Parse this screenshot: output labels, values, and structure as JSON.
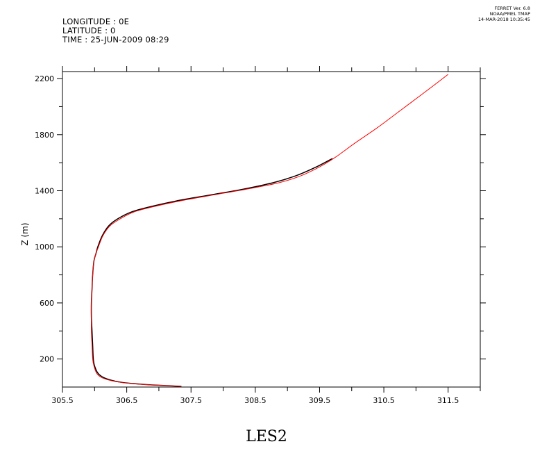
{
  "header": {
    "longitude": "LONGITUDE : 0E",
    "latitude": "LATITUDE : 0",
    "time": "TIME : 25-JUN-2009 08:29"
  },
  "ferret": {
    "line1": "FERRET Ver. 6.8",
    "line2": "NOAA/PMEL TMAP",
    "line3": "14-MAR-2018 10:35:45"
  },
  "chart_data": {
    "type": "line",
    "title": "LES2",
    "xlabel": "",
    "ylabel": "Z (m)",
    "xlim": [
      305.5,
      312.0
    ],
    "ylim": [
      0,
      2250
    ],
    "xticks_major": [
      305.5,
      306.5,
      307.5,
      308.5,
      309.5,
      310.5,
      311.5
    ],
    "xtick_labels": [
      "305.5",
      "306.5",
      "307.5",
      "308.5",
      "309.5",
      "310.5",
      "311.5"
    ],
    "yticks_major": [
      200,
      600,
      1000,
      1400,
      1800,
      2200
    ],
    "ytick_labels": [
      "200",
      "600",
      "1000",
      "1400",
      "1800",
      "2200"
    ],
    "grid": false,
    "series": [
      {
        "color": "#000000",
        "x": [
          307.35,
          306.9,
          306.6,
          306.4,
          306.25,
          306.13,
          306.05,
          306.0,
          305.98,
          305.97,
          305.96,
          305.95,
          305.95,
          305.96,
          305.97,
          305.99,
          306.02,
          306.05,
          306.12,
          306.22,
          306.36,
          306.58,
          306.9,
          307.3,
          307.8,
          308.3,
          308.8,
          309.15,
          309.45,
          309.7
        ],
        "y": [
          5,
          15,
          25,
          35,
          50,
          70,
          100,
          150,
          200,
          300,
          400,
          500,
          600,
          700,
          800,
          900,
          950,
          1000,
          1080,
          1150,
          1200,
          1250,
          1290,
          1330,
          1370,
          1410,
          1460,
          1510,
          1570,
          1630
        ]
      },
      {
        "color": "#ff0000",
        "x": [
          307.35,
          306.88,
          306.58,
          306.38,
          306.22,
          306.1,
          306.03,
          305.99,
          305.97,
          305.96,
          305.95,
          305.95,
          305.95,
          305.96,
          305.97,
          305.99,
          306.02,
          306.06,
          306.13,
          306.24,
          306.4,
          306.62,
          306.95,
          307.36,
          307.85,
          308.35,
          308.85,
          309.2,
          309.5,
          309.75,
          310.05,
          310.4,
          310.75,
          311.1,
          311.5
        ],
        "y": [
          5,
          15,
          25,
          35,
          50,
          70,
          100,
          150,
          200,
          300,
          400,
          500,
          600,
          700,
          800,
          900,
          950,
          1000,
          1080,
          1150,
          1200,
          1250,
          1290,
          1330,
          1370,
          1410,
          1455,
          1505,
          1570,
          1640,
          1740,
          1850,
          1970,
          2090,
          2230
        ]
      }
    ]
  }
}
